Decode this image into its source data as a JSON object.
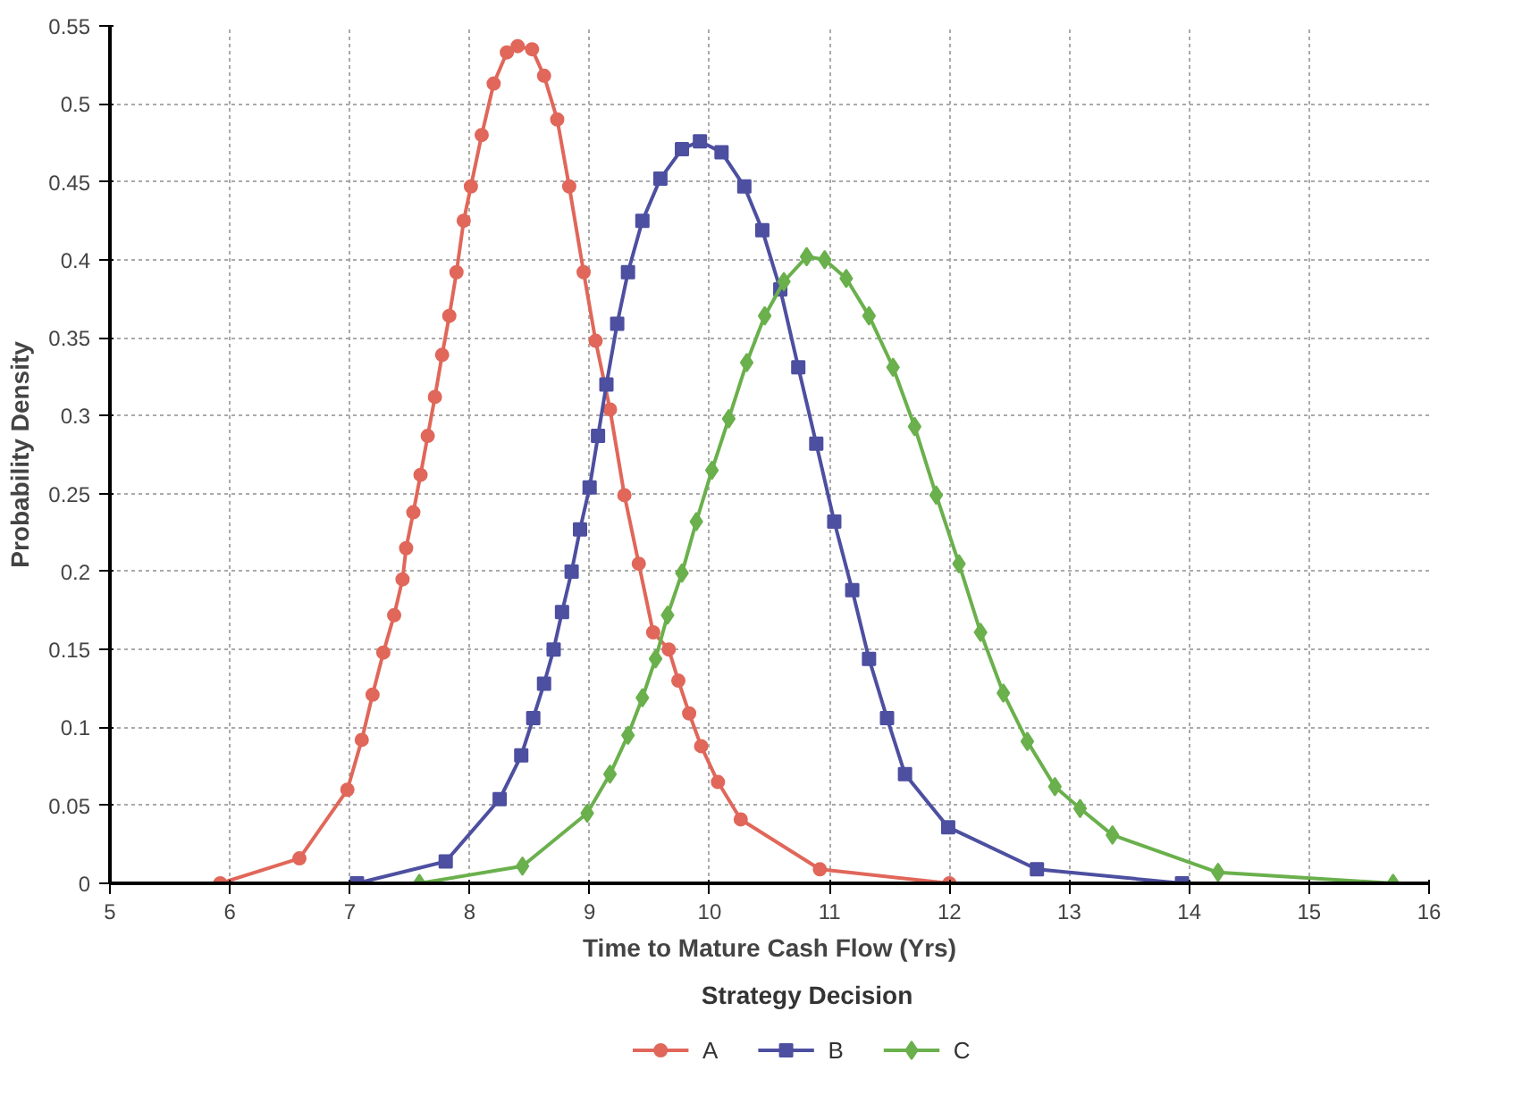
{
  "chart_data": {
    "type": "line",
    "xlabel": "Time to Mature Cash Flow (Yrs)",
    "ylabel": "Probability Density",
    "legend_title": "Strategy Decision",
    "legend": "bottom",
    "grid": true,
    "line_style": "solid",
    "xlim": [
      5,
      16
    ],
    "xticks": [
      5,
      6,
      7,
      8,
      9,
      10,
      11,
      12,
      13,
      14,
      15,
      16
    ],
    "ylim": [
      0,
      0.55
    ],
    "yticks": [
      0,
      0.05,
      0.1,
      0.15,
      0.2,
      0.25,
      0.3,
      0.35,
      0.4,
      0.45,
      0.5,
      0.55
    ],
    "series": [
      {
        "name": "A",
        "color": "#e0675a",
        "marker": "circle",
        "x": [
          5.92,
          6.58,
          6.98,
          7.1,
          7.19,
          7.28,
          7.37,
          7.44,
          7.47,
          7.53,
          7.59,
          7.65,
          7.71,
          7.77,
          7.83,
          7.89,
          7.95,
          8.01,
          8.1,
          8.2,
          8.31,
          8.4,
          8.52,
          8.62,
          8.73,
          8.83,
          8.95,
          9.05,
          9.17,
          9.29,
          9.41,
          9.53,
          9.66,
          9.74,
          9.83,
          9.93,
          10.07,
          10.26,
          10.92,
          12.0
        ],
        "values": [
          0,
          0.016,
          0.06,
          0.092,
          0.121,
          0.148,
          0.172,
          0.195,
          0.215,
          0.238,
          0.262,
          0.287,
          0.312,
          0.339,
          0.364,
          0.392,
          0.425,
          0.447,
          0.48,
          0.513,
          0.533,
          0.537,
          0.535,
          0.518,
          0.49,
          0.447,
          0.392,
          0.348,
          0.304,
          0.249,
          0.205,
          0.161,
          0.15,
          0.13,
          0.109,
          0.088,
          0.065,
          0.041,
          0.009,
          0
        ]
      },
      {
        "name": "B",
        "color": "#4d4fa0",
        "marker": "square",
        "x": [
          7.06,
          7.8,
          8.25,
          8.43,
          8.53,
          8.62,
          8.7,
          8.77,
          8.85,
          8.92,
          9.0,
          9.07,
          9.14,
          9.23,
          9.32,
          9.44,
          9.59,
          9.77,
          9.92,
          10.1,
          10.29,
          10.44,
          10.59,
          10.74,
          10.89,
          11.04,
          11.19,
          11.33,
          11.48,
          11.63,
          11.99,
          12.73,
          13.94
        ],
        "values": [
          0,
          0.014,
          0.054,
          0.082,
          0.106,
          0.128,
          0.15,
          0.174,
          0.2,
          0.227,
          0.254,
          0.287,
          0.32,
          0.359,
          0.392,
          0.425,
          0.452,
          0.471,
          0.476,
          0.469,
          0.447,
          0.419,
          0.381,
          0.331,
          0.282,
          0.232,
          0.188,
          0.144,
          0.106,
          0.07,
          0.036,
          0.009,
          0
        ]
      },
      {
        "name": "C",
        "color": "#6ab04c",
        "marker": "diamond",
        "x": [
          7.58,
          8.44,
          8.98,
          9.17,
          9.32,
          9.44,
          9.55,
          9.65,
          9.77,
          9.89,
          10.02,
          10.16,
          10.31,
          10.46,
          10.62,
          10.81,
          10.96,
          11.14,
          11.33,
          11.53,
          11.71,
          11.89,
          12.08,
          12.26,
          12.45,
          12.65,
          12.88,
          13.09,
          13.36,
          14.24,
          15.7
        ],
        "values": [
          0,
          0.011,
          0.045,
          0.07,
          0.095,
          0.119,
          0.144,
          0.172,
          0.199,
          0.232,
          0.265,
          0.298,
          0.334,
          0.364,
          0.386,
          0.402,
          0.4,
          0.388,
          0.364,
          0.331,
          0.293,
          0.249,
          0.205,
          0.161,
          0.122,
          0.091,
          0.062,
          0.048,
          0.031,
          0.007,
          0
        ]
      }
    ]
  }
}
